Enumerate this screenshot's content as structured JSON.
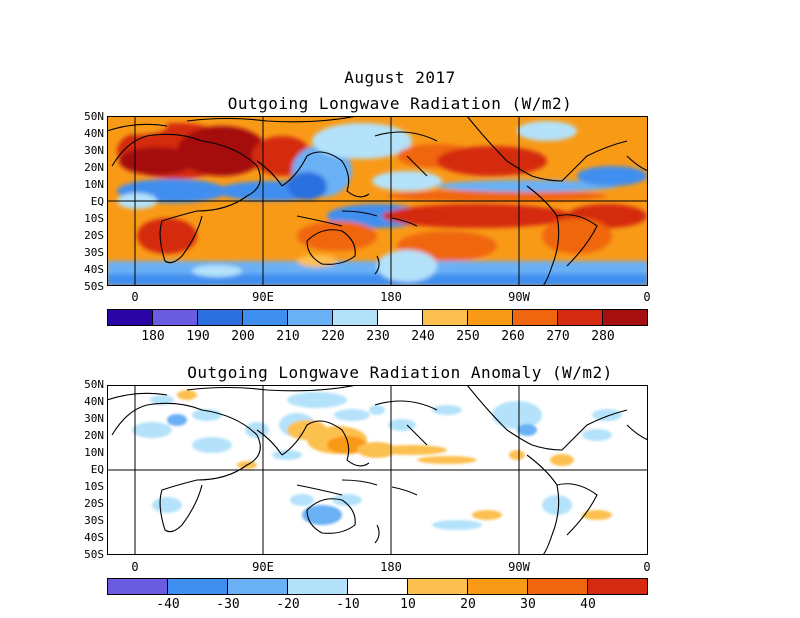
{
  "main_title": "August 2017",
  "panels": [
    {
      "id": "olr",
      "title": "Outgoing Longwave Radiation (W/m2)",
      "lat_labels": [
        "50N",
        "40N",
        "30N",
        "20N",
        "10N",
        "EQ",
        "10S",
        "20S",
        "30S",
        "40S",
        "50S"
      ],
      "lon_labels": [
        "0",
        "90E",
        "180",
        "90W",
        "0"
      ],
      "colorbar": {
        "colors": [
          "#2a06a6",
          "#6b5be0",
          "#2b6fe0",
          "#3f8ff0",
          "#6ab0f5",
          "#b4e2fa",
          "#ffffff",
          "#fcc050",
          "#f99a17",
          "#f0660e",
          "#d42b10",
          "#a50f0f"
        ],
        "labels": [
          "180",
          "190",
          "200",
          "210",
          "220",
          "230",
          "240",
          "250",
          "260",
          "270",
          "280"
        ]
      }
    },
    {
      "id": "olr-anomaly",
      "title": "Outgoing Longwave Radiation Anomaly (W/m2)",
      "lat_labels": [
        "50N",
        "40N",
        "30N",
        "20N",
        "10N",
        "EQ",
        "10S",
        "20S",
        "30S",
        "40S",
        "50S"
      ],
      "lon_labels": [
        "0",
        "90E",
        "180",
        "90W",
        "0"
      ],
      "colorbar": {
        "colors": [
          "#6b5be0",
          "#3f8ff0",
          "#6ab0f5",
          "#b4e2fa",
          "#ffffff",
          "#fcc050",
          "#f99a17",
          "#f0660e",
          "#d42b10"
        ],
        "labels": [
          "-40",
          "-30",
          "-20",
          "-10",
          "10",
          "20",
          "30",
          "40"
        ]
      }
    }
  ]
}
